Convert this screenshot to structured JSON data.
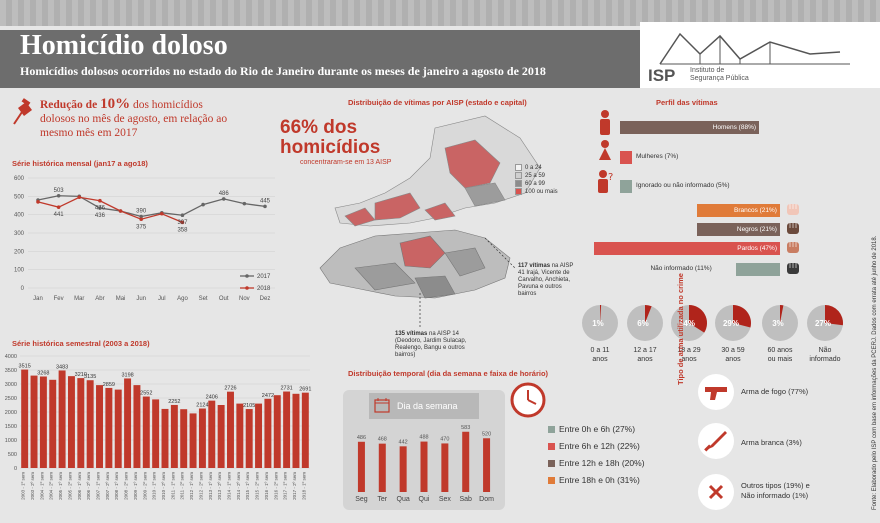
{
  "header": {
    "title": "Homicídio doloso",
    "subtitle": "Homicídios dolosos ocorridos no estado do Rio de Janeiro durante os meses de janeiro a agosto de 2018",
    "logo_text": "ISP",
    "logo_sub1": "Instituto de",
    "logo_sub2": "Segurança Pública"
  },
  "highlight": {
    "reduction_prefix": "Redução de ",
    "reduction_value": "10%",
    "reduction_rest": " dos homicídios dolosos no mês de agosto, em relação ao mesmo mês em 2017"
  },
  "aisp": {
    "title": "Distribuição de vítimas por AISP (estado e capital)",
    "big_line1": "66% dos",
    "big_line2": "homicídios",
    "big_sub": "concentraram-se em 13 AISP",
    "legend": [
      "0 a 24",
      "25 a 59",
      "60 a 99",
      "100 ou mais"
    ],
    "legend_colors": [
      "#f3f3f3",
      "#cfcfcf",
      "#8c8c8c",
      "#d9534f"
    ],
    "note1_strong": "117 vítimas",
    "note1_rest": " na AISP 41 Irajá, Vicente de Carvalho, Anchieta, Pavuna e outros bairros",
    "note2_strong": "135 vítimas",
    "note2_rest": " na AISP 14 (Deodoro, Jardim Sulacap, Realengo, Bangu e outros bairros)"
  },
  "perfil": {
    "title": "Perfil das vítimas",
    "sexo": [
      {
        "label": "Homens (88%)",
        "value": 88,
        "color": "#7a625a"
      },
      {
        "label": "Mulheres (7%)",
        "value": 7,
        "color": "#d9534f"
      },
      {
        "label": "Ignorado ou não informado (5%)",
        "value": 5,
        "color": "#8fa39a"
      }
    ],
    "cor": [
      {
        "label": "Brancos (21%)",
        "value": 21,
        "color": "#e07b39"
      },
      {
        "label": "Negros (21%)",
        "value": 21,
        "color": "#7a625a"
      },
      {
        "label": "Pardos (47%)",
        "value": 47,
        "color": "#d9534f"
      },
      {
        "label": "Não informado (11%)",
        "value": 11,
        "color": "#8fa39a"
      }
    ],
    "idade": [
      {
        "pct": "1%",
        "value": 1,
        "label1": "0 a 11",
        "label2": "anos"
      },
      {
        "pct": "6%",
        "value": 6,
        "label1": "12 a 17",
        "label2": "anos"
      },
      {
        "pct": "34%",
        "value": 34,
        "label1": "18 a 29",
        "label2": "anos"
      },
      {
        "pct": "29%",
        "value": 29,
        "label1": "30 a 59",
        "label2": "anos"
      },
      {
        "pct": "3%",
        "value": 3,
        "label1": "60 anos",
        "label2": "ou mais"
      },
      {
        "pct": "27%",
        "value": 27,
        "label1": "Não",
        "label2": "informado"
      }
    ]
  },
  "arma": {
    "title": "Tipo de arma utilizada no crime",
    "items": [
      "Arma de fogo (77%)",
      "Arma branca (3%)",
      "Outros tipos (19%) e",
      "Não informado (1%)"
    ]
  },
  "temporal": {
    "title": "Distribuição temporal (dia da semana e faixa de horário)",
    "dia_label": "Dia da semana",
    "faixas": [
      {
        "label": "Entre 0h e 6h (27%)",
        "color": "#8fa39a"
      },
      {
        "label": "Entre 6h e 12h (22%)",
        "color": "#d9534f"
      },
      {
        "label": "Entre 12h e 18h (20%)",
        "color": "#7a625a"
      },
      {
        "label": "Entre 18h e 0h (31%)",
        "color": "#e07b39"
      }
    ]
  },
  "fonte": "Fonte: Elaborado pelo ISP com base em informações da PCERJ. Dados com errata até junho de 2018.",
  "chart_data": [
    {
      "type": "line",
      "title": "Série histórica mensal (jan17 a ago18)",
      "categories": [
        "Jan",
        "Fev",
        "Mar",
        "Abr",
        "Mai",
        "Jun",
        "Jul",
        "Ago",
        "Set",
        "Out",
        "Nov",
        "Dez"
      ],
      "ylim": [
        0,
        600
      ],
      "yticks": [
        0,
        100,
        200,
        300,
        400,
        500,
        600
      ],
      "series": [
        {
          "name": "2017",
          "color": "#666666",
          "values": [
            480,
            503,
            500,
            436,
            420,
            390,
            410,
            397,
            455,
            486,
            460,
            445
          ]
        },
        {
          "name": "2018",
          "color": "#c0392b",
          "values": [
            470,
            441,
            495,
            476,
            420,
            375,
            405,
            358,
            null,
            null,
            null,
            null
          ]
        }
      ],
      "labels": [
        {
          "text": "503",
          "series": 0,
          "index": 1
        },
        {
          "text": "441",
          "series": 1,
          "index": 1
        },
        {
          "text": "436",
          "series": 0,
          "index": 3
        },
        {
          "text": "476",
          "series": 1,
          "index": 3
        },
        {
          "text": "390",
          "series": 0,
          "index": 5
        },
        {
          "text": "375",
          "series": 1,
          "index": 5
        },
        {
          "text": "397",
          "series": 0,
          "index": 7
        },
        {
          "text": "358",
          "series": 1,
          "index": 7
        },
        {
          "text": "486",
          "series": 0,
          "index": 9
        },
        {
          "text": "445",
          "series": 0,
          "index": 11
        }
      ]
    },
    {
      "type": "bar",
      "title": "Série histórica semestral (2003 a 2018)",
      "ylim": [
        0,
        4000
      ],
      "yticks": [
        0,
        500,
        1000,
        1500,
        2000,
        2500,
        3000,
        3500,
        4000
      ],
      "categories": [
        "2003 - 1º sem",
        "2003 - 2º sem",
        "2004 - 1º sem",
        "2004 - 2º sem",
        "2005 - 1º sem",
        "2005 - 2º sem",
        "2006 - 1º sem",
        "2006 - 2º sem",
        "2007 - 1º sem",
        "2007 - 2º sem",
        "2008 - 1º sem",
        "2008 - 2º sem",
        "2009 - 1º sem",
        "2009 - 2º sem",
        "2010 - 1º sem",
        "2010 - 2º sem",
        "2011 - 1º sem",
        "2011 - 2º sem",
        "2012 - 1º sem",
        "2012 - 2º sem",
        "2013 - 1º sem",
        "2013 - 2º sem",
        "2014 - 1º sem",
        "2014 - 2º sem",
        "2015 - 1º sem",
        "2015 - 2º sem",
        "2016 - 1º sem",
        "2016 - 2º sem",
        "2017 - 1º sem",
        "2017 - 2º sem",
        "2018 - 1º sem"
      ],
      "values": [
        3515,
        3300,
        3268,
        3150,
        3483,
        3280,
        3210,
        3135,
        2960,
        2859,
        2800,
        3198,
        2960,
        2552,
        2450,
        2110,
        2252,
        2100,
        1950,
        2124,
        2406,
        2250,
        2726,
        2300,
        2105,
        2300,
        2472,
        2600,
        2731,
        2650,
        2691
      ],
      "labels": {
        "0": "3515",
        "2": "3268",
        "4": "3483",
        "6": "3210",
        "7": "3135",
        "9": "2859",
        "11": "3198",
        "13": "2552",
        "16": "2252",
        "19": "2124",
        "20": "2406",
        "22": "2726",
        "24": "2105",
        "26": "2472",
        "28": "2731",
        "30": "2691"
      }
    },
    {
      "type": "bar",
      "title": "Dia da semana",
      "categories": [
        "Seg",
        "Ter",
        "Qua",
        "Qui",
        "Sex",
        "Sab",
        "Dom"
      ],
      "values": [
        486,
        468,
        442,
        488,
        470,
        583,
        520
      ],
      "ylim": [
        0,
        600
      ]
    }
  ]
}
